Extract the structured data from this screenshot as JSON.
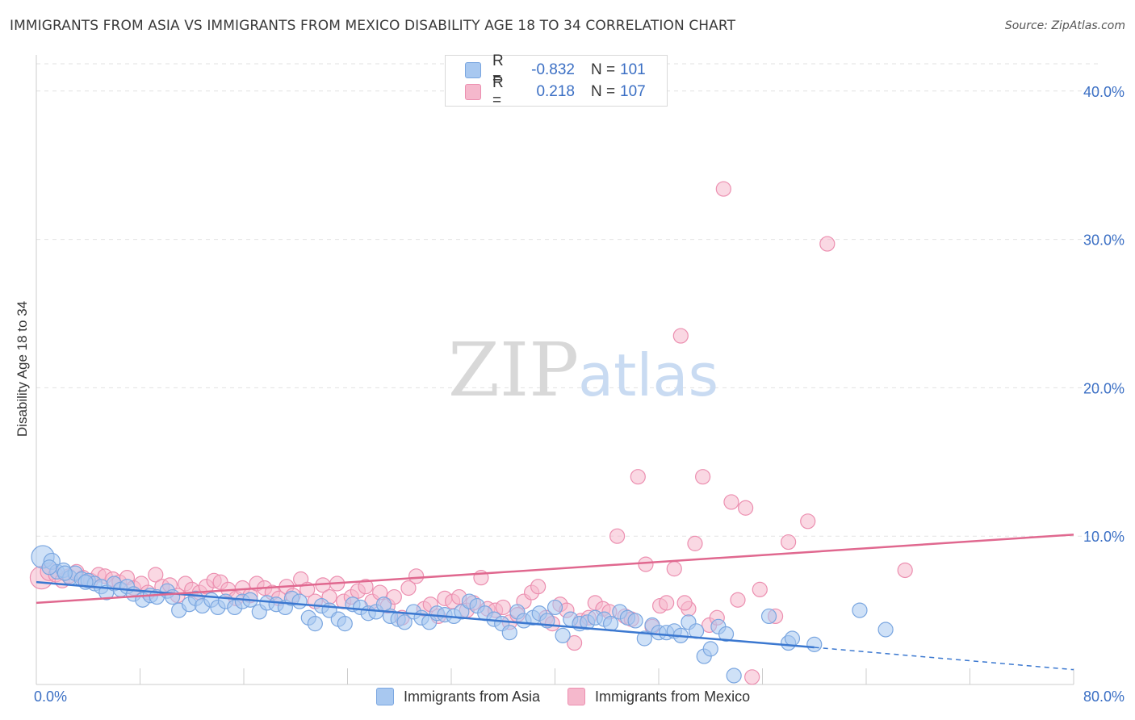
{
  "title": "IMMIGRANTS FROM ASIA VS IMMIGRANTS FROM MEXICO DISABILITY AGE 18 TO 34 CORRELATION CHART",
  "source": "Source: ZipAtlas.com",
  "watermark": {
    "zip": "ZIP",
    "atlas": "atlas"
  },
  "legend": {
    "r_label": "R =",
    "n_label": "N =",
    "asia": {
      "r": "-0.832",
      "n": "101"
    },
    "mexico": {
      "r": "0.218",
      "n": "107"
    }
  },
  "colors": {
    "asia_fill": "#a8c8f0",
    "asia_stroke": "#7aa6e0",
    "asia_line": "#3b78d0",
    "mexico_fill": "#f5b8cc",
    "mexico_stroke": "#ec8fb0",
    "mexico_line": "#e0688f",
    "axis_text": "#3b6fc4",
    "grid": "#e2e2e2"
  },
  "chart_data": {
    "type": "scatter",
    "title": "IMMIGRANTS FROM ASIA VS IMMIGRANTS FROM MEXICO DISABILITY AGE 18 TO 34 CORRELATION CHART",
    "xlabel": "",
    "ylabel": "Disability Age 18 to 34",
    "xlim": [
      0,
      80
    ],
    "ylim": [
      0,
      42
    ],
    "x_tick_labels": [
      "0.0%",
      "80.0%"
    ],
    "y_ticks": [
      10,
      20,
      30,
      40
    ],
    "y_tick_labels": [
      "10.0%",
      "20.0%",
      "30.0%",
      "40.0%"
    ],
    "grid": true,
    "legend_position": "top-center",
    "series": [
      {
        "name": "Immigrants from Asia",
        "trend": {
          "x0": 0,
          "y0": 6.9,
          "x1": 60,
          "y1": 2.5,
          "dashed_to_x": 80,
          "dashed_to_y": 1.0
        },
        "points": [
          [
            0.5,
            8.6,
            14
          ],
          [
            1.2,
            8.3,
            10
          ],
          [
            1.6,
            7.6,
            9
          ],
          [
            2.1,
            7.7,
            9
          ],
          [
            2.6,
            7.2,
            9
          ],
          [
            3.0,
            7.5,
            9
          ],
          [
            3.5,
            7.1,
            9
          ],
          [
            4.0,
            7.0,
            9
          ],
          [
            4.5,
            6.8,
            9
          ],
          [
            5.0,
            6.6,
            9
          ],
          [
            5.4,
            6.2,
            9
          ],
          [
            6.0,
            6.8,
            9
          ],
          [
            6.5,
            6.4,
            9
          ],
          [
            7.0,
            6.6,
            9
          ],
          [
            7.5,
            6.1,
            9
          ],
          [
            8.2,
            5.7,
            9
          ],
          [
            8.8,
            6.0,
            9
          ],
          [
            9.3,
            5.9,
            9
          ],
          [
            10.1,
            6.3,
            9
          ],
          [
            10.5,
            5.9,
            9
          ],
          [
            11.0,
            5.0,
            9
          ],
          [
            11.8,
            5.4,
            9
          ],
          [
            12.3,
            5.8,
            9
          ],
          [
            12.8,
            5.3,
            9
          ],
          [
            13.5,
            5.7,
            9
          ],
          [
            14.0,
            5.2,
            9
          ],
          [
            14.6,
            5.6,
            9
          ],
          [
            15.3,
            5.2,
            9
          ],
          [
            15.9,
            5.6,
            9
          ],
          [
            16.5,
            5.7,
            9
          ],
          [
            17.2,
            4.9,
            9
          ],
          [
            17.8,
            5.5,
            9
          ],
          [
            18.5,
            5.4,
            9
          ],
          [
            19.2,
            5.2,
            9
          ],
          [
            19.7,
            5.8,
            9
          ],
          [
            20.3,
            5.6,
            9
          ],
          [
            21.0,
            4.5,
            9
          ],
          [
            21.5,
            4.1,
            9
          ],
          [
            22.0,
            5.3,
            9
          ],
          [
            22.6,
            5.0,
            9
          ],
          [
            23.3,
            4.4,
            9
          ],
          [
            23.8,
            4.1,
            9
          ],
          [
            24.4,
            5.4,
            9
          ],
          [
            25.0,
            5.2,
            9
          ],
          [
            25.6,
            4.8,
            9
          ],
          [
            26.2,
            4.9,
            9
          ],
          [
            26.8,
            5.4,
            9
          ],
          [
            27.3,
            4.6,
            9
          ],
          [
            27.9,
            4.4,
            9
          ],
          [
            28.4,
            4.2,
            9
          ],
          [
            29.1,
            4.9,
            9
          ],
          [
            29.7,
            4.5,
            9
          ],
          [
            30.3,
            4.2,
            9
          ],
          [
            30.9,
            4.8,
            9
          ],
          [
            31.5,
            4.7,
            9
          ],
          [
            32.2,
            4.6,
            9
          ],
          [
            32.8,
            4.9,
            9
          ],
          [
            33.4,
            5.6,
            9
          ],
          [
            34.0,
            5.3,
            9
          ],
          [
            34.6,
            4.8,
            9
          ],
          [
            35.3,
            4.4,
            9
          ],
          [
            35.9,
            4.1,
            9
          ],
          [
            36.5,
            3.5,
            9
          ],
          [
            37.1,
            4.9,
            9
          ],
          [
            37.6,
            4.3,
            9
          ],
          [
            38.3,
            4.5,
            9
          ],
          [
            38.8,
            4.8,
            9
          ],
          [
            39.4,
            4.3,
            9
          ],
          [
            40.0,
            5.2,
            9
          ],
          [
            40.6,
            3.3,
            9
          ],
          [
            41.2,
            4.4,
            9
          ],
          [
            41.9,
            4.1,
            9
          ],
          [
            42.5,
            4.2,
            9
          ],
          [
            43.1,
            4.5,
            9
          ],
          [
            43.8,
            4.4,
            9
          ],
          [
            44.3,
            4.1,
            9
          ],
          [
            45.0,
            4.9,
            9
          ],
          [
            45.6,
            4.5,
            9
          ],
          [
            46.2,
            4.3,
            9
          ],
          [
            46.9,
            3.1,
            9
          ],
          [
            47.5,
            4.0,
            9
          ],
          [
            48.0,
            3.5,
            9
          ],
          [
            48.6,
            3.5,
            9
          ],
          [
            49.2,
            3.6,
            9
          ],
          [
            49.7,
            3.3,
            9
          ],
          [
            50.3,
            4.2,
            9
          ],
          [
            50.9,
            3.6,
            9
          ],
          [
            51.5,
            1.9,
            9
          ],
          [
            52.0,
            2.4,
            9
          ],
          [
            52.6,
            3.9,
            9
          ],
          [
            53.2,
            3.4,
            9
          ],
          [
            53.8,
            0.6,
            9
          ],
          [
            56.5,
            4.6,
            9
          ],
          [
            58.0,
            2.8,
            9
          ],
          [
            58.3,
            3.1,
            9
          ],
          [
            60.0,
            2.7,
            9
          ],
          [
            63.5,
            5.0,
            9
          ],
          [
            65.5,
            3.7,
            9
          ],
          [
            1.0,
            7.9,
            9
          ],
          [
            2.2,
            7.5,
            9
          ],
          [
            3.8,
            6.9,
            9
          ]
        ]
      },
      {
        "name": "Immigrants from Mexico",
        "trend": {
          "x0": 0,
          "y0": 5.5,
          "x1": 80,
          "y1": 10.1
        },
        "points": [
          [
            0.4,
            7.2,
            14
          ],
          [
            1.0,
            7.6,
            11
          ],
          [
            1.5,
            7.4,
            9
          ],
          [
            2.0,
            7.0,
            9
          ],
          [
            2.5,
            7.3,
            9
          ],
          [
            3.1,
            7.6,
            9
          ],
          [
            3.6,
            7.2,
            9
          ],
          [
            4.2,
            7.0,
            9
          ],
          [
            4.8,
            7.4,
            9
          ],
          [
            5.3,
            7.3,
            9
          ],
          [
            5.9,
            7.1,
            9
          ],
          [
            6.4,
            6.9,
            9
          ],
          [
            7.0,
            7.2,
            9
          ],
          [
            7.5,
            6.5,
            9
          ],
          [
            8.1,
            6.8,
            9
          ],
          [
            8.6,
            6.2,
            9
          ],
          [
            9.2,
            7.4,
            9
          ],
          [
            9.7,
            6.6,
            9
          ],
          [
            10.3,
            6.7,
            9
          ],
          [
            10.9,
            6.0,
            9
          ],
          [
            11.5,
            6.8,
            9
          ],
          [
            12.0,
            6.4,
            9
          ],
          [
            12.6,
            6.2,
            9
          ],
          [
            13.1,
            6.6,
            9
          ],
          [
            13.7,
            7.0,
            9
          ],
          [
            14.2,
            6.9,
            9
          ],
          [
            14.8,
            6.4,
            9
          ],
          [
            15.4,
            5.8,
            9
          ],
          [
            15.9,
            6.5,
            9
          ],
          [
            16.5,
            6.0,
            9
          ],
          [
            17.0,
            6.8,
            9
          ],
          [
            17.6,
            6.5,
            9
          ],
          [
            18.2,
            6.2,
            9
          ],
          [
            18.7,
            5.8,
            9
          ],
          [
            19.3,
            6.6,
            9
          ],
          [
            19.8,
            6.0,
            9
          ],
          [
            20.4,
            7.1,
            9
          ],
          [
            20.9,
            6.4,
            9
          ],
          [
            21.5,
            5.6,
            9
          ],
          [
            22.1,
            6.7,
            9
          ],
          [
            22.6,
            5.9,
            9
          ],
          [
            23.2,
            6.8,
            9
          ],
          [
            23.7,
            5.6,
            9
          ],
          [
            24.3,
            5.9,
            9
          ],
          [
            24.8,
            6.3,
            9
          ],
          [
            25.4,
            6.6,
            9
          ],
          [
            25.9,
            5.6,
            9
          ],
          [
            26.5,
            6.2,
            9
          ],
          [
            27.1,
            5.3,
            9
          ],
          [
            27.6,
            5.9,
            9
          ],
          [
            28.2,
            4.5,
            9
          ],
          [
            28.7,
            6.5,
            9
          ],
          [
            29.3,
            7.3,
            9
          ],
          [
            29.9,
            5.1,
            9
          ],
          [
            30.4,
            5.4,
            9
          ],
          [
            31.0,
            4.6,
            9
          ],
          [
            31.5,
            5.8,
            9
          ],
          [
            32.1,
            5.6,
            9
          ],
          [
            32.6,
            5.9,
            9
          ],
          [
            33.2,
            5.0,
            9
          ],
          [
            33.7,
            5.5,
            9
          ],
          [
            34.3,
            7.2,
            9
          ],
          [
            34.8,
            5.1,
            9
          ],
          [
            35.4,
            5.0,
            9
          ],
          [
            36.0,
            5.2,
            9
          ],
          [
            36.5,
            4.2,
            9
          ],
          [
            37.1,
            4.7,
            9
          ],
          [
            37.6,
            5.6,
            9
          ],
          [
            38.2,
            6.2,
            9
          ],
          [
            38.7,
            6.6,
            9
          ],
          [
            39.3,
            4.5,
            9
          ],
          [
            39.8,
            4.1,
            9
          ],
          [
            40.4,
            5.4,
            9
          ],
          [
            40.9,
            5.0,
            9
          ],
          [
            41.5,
            2.8,
            9
          ],
          [
            42.0,
            4.3,
            9
          ],
          [
            42.6,
            4.5,
            9
          ],
          [
            43.1,
            5.5,
            9
          ],
          [
            43.7,
            5.1,
            9
          ],
          [
            44.2,
            4.9,
            9
          ],
          [
            44.8,
            10.0,
            9
          ],
          [
            45.4,
            4.6,
            9
          ],
          [
            45.9,
            4.4,
            9
          ],
          [
            46.4,
            14.0,
            9
          ],
          [
            47.0,
            8.1,
            9
          ],
          [
            47.5,
            3.9,
            9
          ],
          [
            48.1,
            5.3,
            9
          ],
          [
            48.6,
            5.5,
            9
          ],
          [
            49.2,
            7.8,
            9
          ],
          [
            49.7,
            23.5,
            9
          ],
          [
            50.3,
            5.1,
            9
          ],
          [
            50.8,
            9.5,
            9
          ],
          [
            51.4,
            14.0,
            9
          ],
          [
            51.9,
            4.0,
            9
          ],
          [
            52.5,
            4.5,
            9
          ],
          [
            53.0,
            33.4,
            9
          ],
          [
            53.6,
            12.3,
            9
          ],
          [
            54.1,
            5.7,
            9
          ],
          [
            54.7,
            11.9,
            9
          ],
          [
            55.2,
            0.5,
            9
          ],
          [
            55.8,
            6.4,
            9
          ],
          [
            57.0,
            4.6,
            9
          ],
          [
            58.0,
            9.6,
            9
          ],
          [
            59.5,
            11.0,
            9
          ],
          [
            61.0,
            29.7,
            9
          ],
          [
            67.0,
            7.7,
            9
          ],
          [
            50.0,
            5.5,
            9
          ]
        ]
      }
    ]
  },
  "bottom_legend": {
    "asia": "Immigrants from Asia",
    "mexico": "Immigrants from Mexico"
  }
}
